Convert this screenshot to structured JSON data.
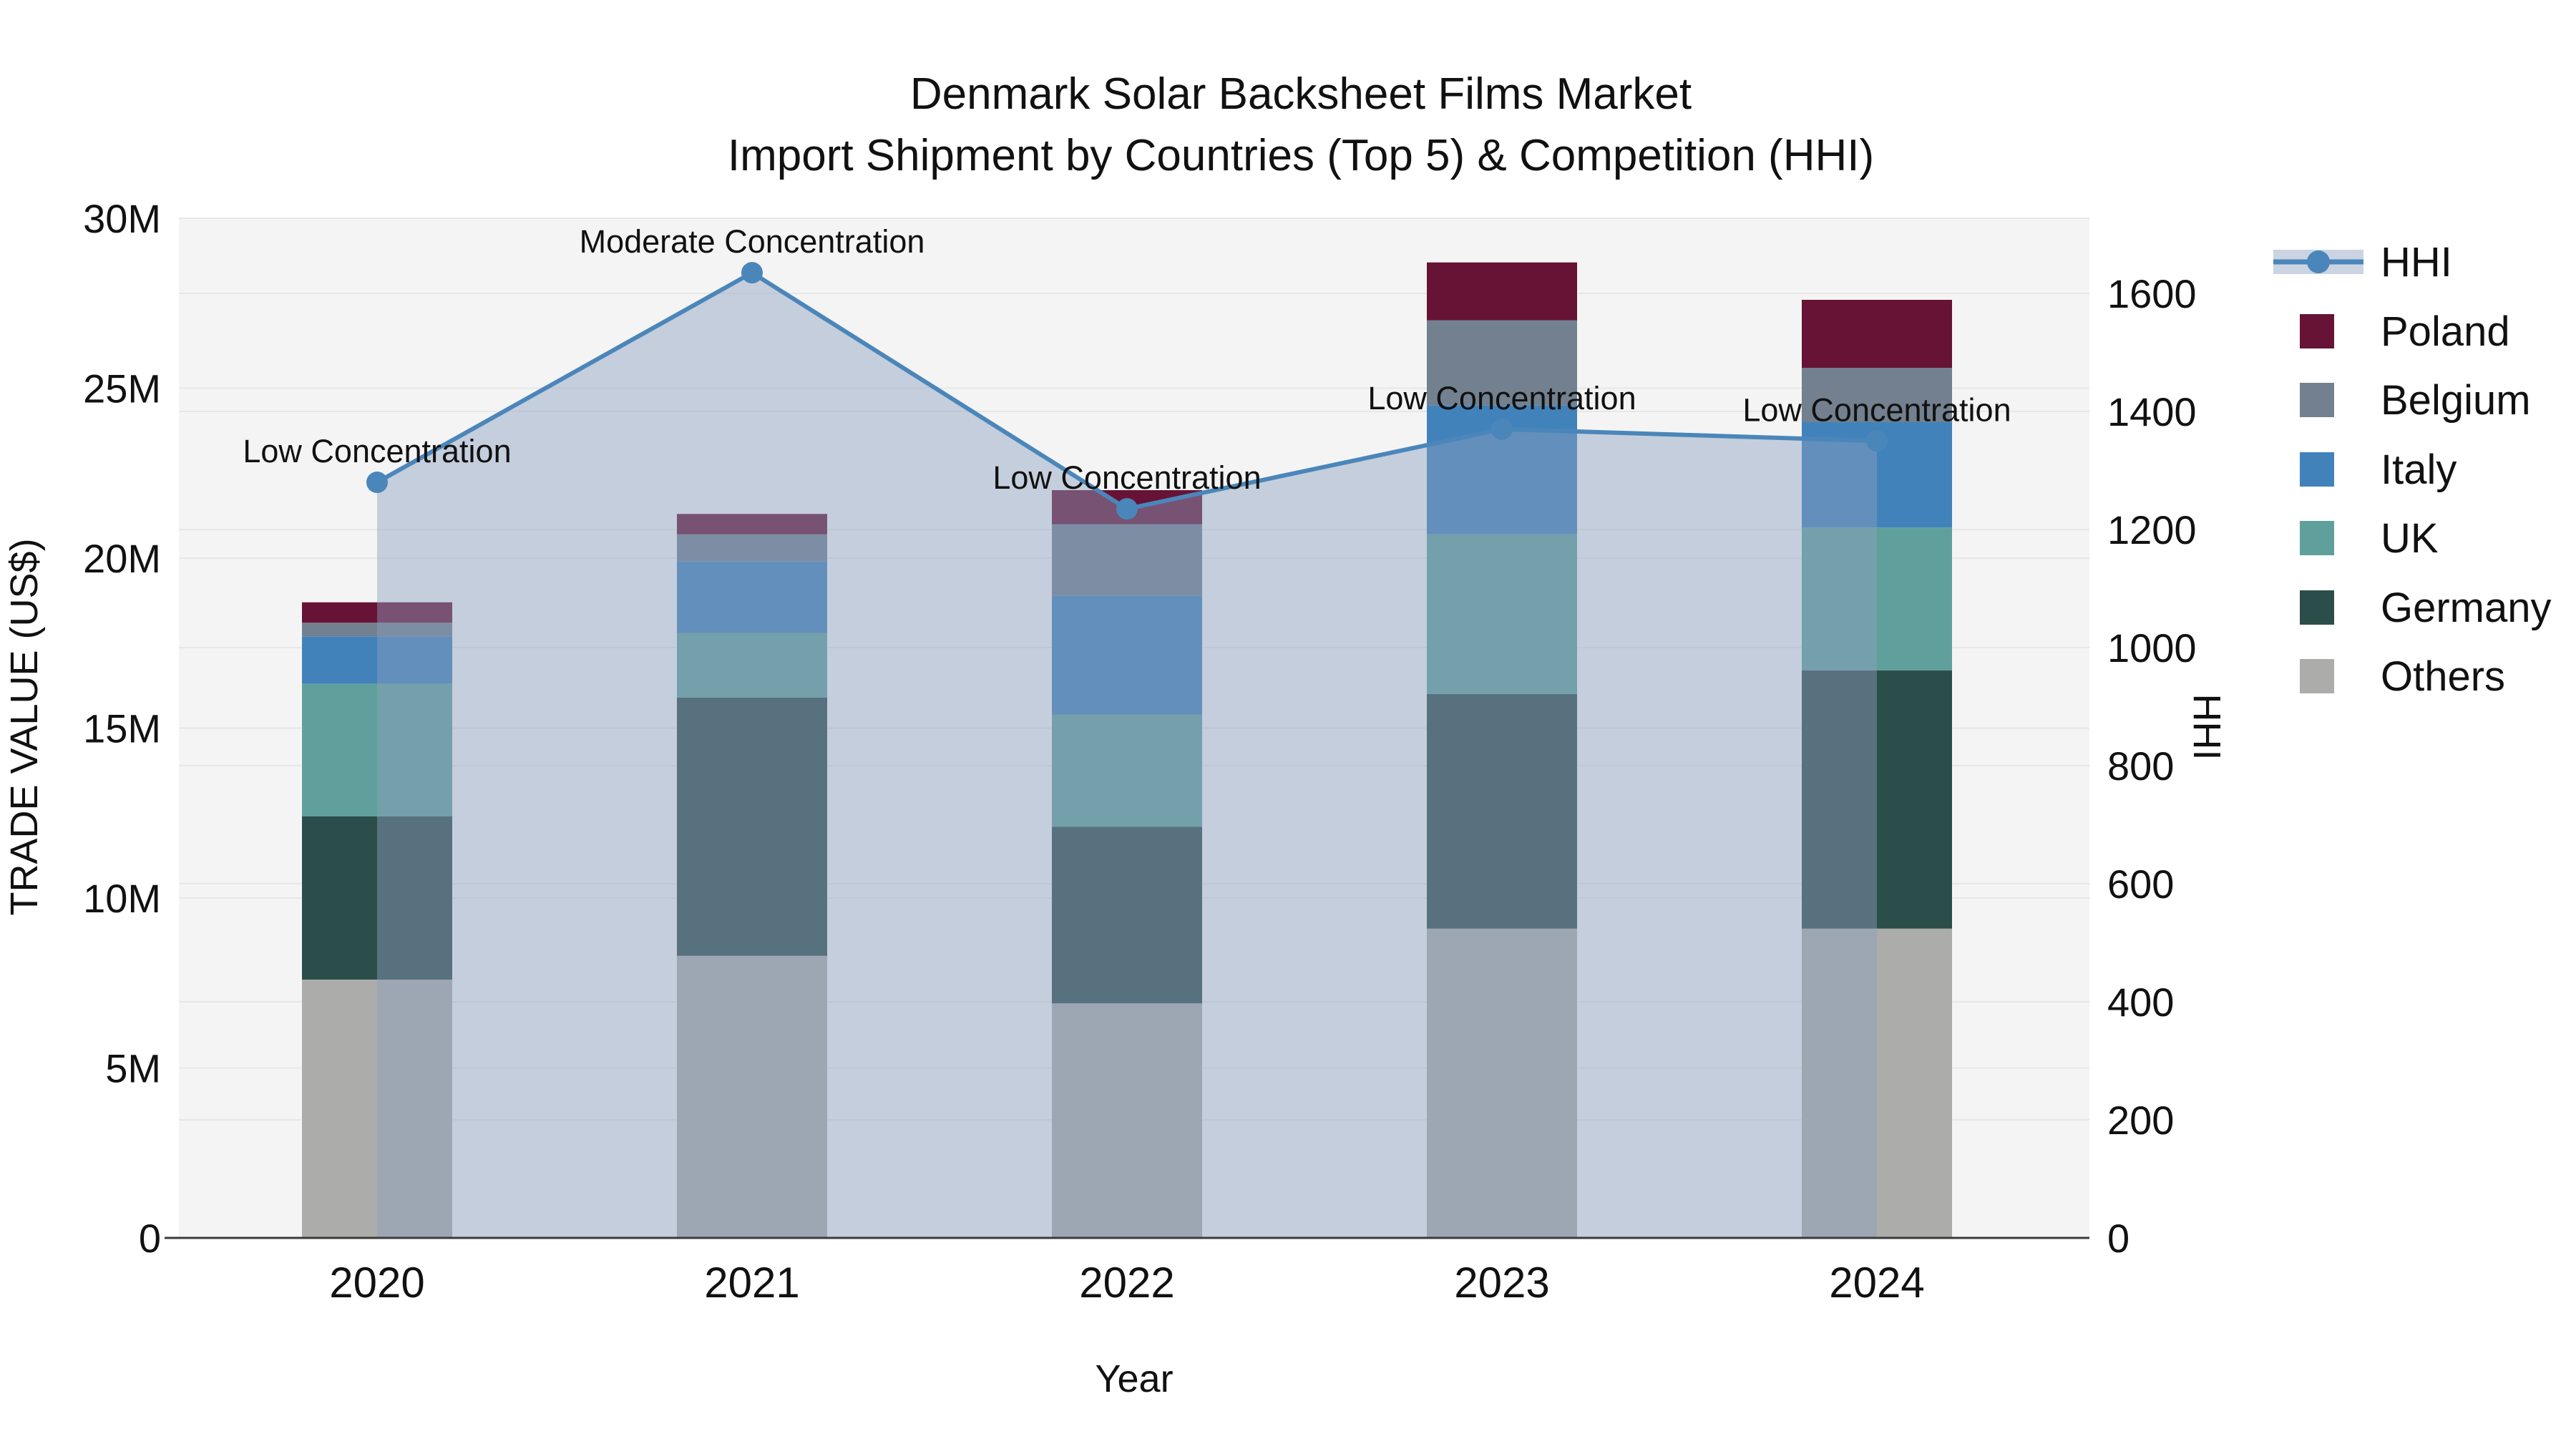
{
  "title": {
    "line1": "Denmark Solar Backsheet Films Market",
    "line2": "Import Shipment by Countries (Top 5) & Competition (HHI)"
  },
  "axes": {
    "left": {
      "title": "TRADE VALUE (US$)",
      "tick_labels": [
        "0",
        "5M",
        "10M",
        "15M",
        "20M",
        "25M",
        "30M"
      ],
      "tick_values": [
        0,
        5,
        10,
        15,
        20,
        25,
        30
      ],
      "range": [
        0,
        30
      ]
    },
    "right": {
      "title": "HHI",
      "tick_labels": [
        "0",
        "200",
        "400",
        "600",
        "800",
        "1000",
        "1200",
        "1400",
        "1600"
      ],
      "tick_values": [
        0,
        200,
        400,
        600,
        800,
        1000,
        1200,
        1400,
        1600
      ],
      "range": [
        0,
        1727
      ]
    },
    "x": {
      "title": "Year",
      "categories": [
        "2020",
        "2021",
        "2022",
        "2023",
        "2024"
      ]
    }
  },
  "legend": {
    "items": [
      {
        "label": "HHI",
        "type": "line",
        "color": "#4a86ba"
      },
      {
        "label": "Poland",
        "type": "swatch",
        "color": "#661335"
      },
      {
        "label": "Belgium",
        "type": "swatch",
        "color": "#72808f"
      },
      {
        "label": "Italy",
        "type": "swatch",
        "color": "#4282ba"
      },
      {
        "label": "UK",
        "type": "swatch",
        "color": "#5fa09c"
      },
      {
        "label": "Germany",
        "type": "swatch",
        "color": "#2c4e4a"
      },
      {
        "label": "Others",
        "type": "swatch",
        "color": "#acacaa"
      }
    ]
  },
  "chart_data": {
    "type": "bar+line",
    "title": "Denmark Solar Backsheet Films Market — Import Shipment by Countries (Top 5) & Competition (HHI)",
    "categories": [
      "2020",
      "2021",
      "2022",
      "2023",
      "2024"
    ],
    "bar_value_unit": "million US$",
    "stack_order_bottom_to_top": [
      "Others",
      "Germany",
      "UK",
      "Italy",
      "Belgium",
      "Poland"
    ],
    "series": [
      {
        "name": "Others",
        "color": "#acacaa",
        "values": [
          7.6,
          8.3,
          6.9,
          9.1,
          9.1
        ]
      },
      {
        "name": "Germany",
        "color": "#2c4e4a",
        "values": [
          4.8,
          7.6,
          5.2,
          6.9,
          7.6
        ]
      },
      {
        "name": "UK",
        "color": "#5fa09c",
        "values": [
          3.9,
          1.9,
          3.3,
          4.7,
          4.2
        ]
      },
      {
        "name": "Italy",
        "color": "#4282ba",
        "values": [
          1.4,
          2.1,
          3.5,
          3.8,
          3.1
        ]
      },
      {
        "name": "Belgium",
        "color": "#72808f",
        "values": [
          0.4,
          0.8,
          2.1,
          2.5,
          1.6
        ]
      },
      {
        "name": "Poland",
        "color": "#661335",
        "values": [
          0.6,
          0.6,
          1.0,
          1.7,
          2.0
        ]
      }
    ],
    "bar_totals": [
      18.7,
      21.3,
      22.0,
      28.7,
      27.6
    ],
    "line_series": {
      "name": "HHI",
      "axis": "right",
      "color": "#4a86ba",
      "area_fill": "rgba(140,160,190,0.45)",
      "values": [
        1280,
        1635,
        1235,
        1370,
        1350
      ]
    },
    "annotations": [
      {
        "x": "2020",
        "text": "Low Concentration"
      },
      {
        "x": "2021",
        "text": "Moderate Concentration"
      },
      {
        "x": "2022",
        "text": "Low Concentration"
      },
      {
        "x": "2023",
        "text": "Low Concentration"
      },
      {
        "x": "2024",
        "text": "Low Concentration"
      }
    ],
    "ylabel_left": "TRADE VALUE (US$)",
    "ylabel_right": "HHI",
    "xlabel": "Year",
    "grid": true,
    "legend_position": "right"
  },
  "colors": {
    "plot_background": "#f4f4f4",
    "page_background": "#ffffff",
    "gridline": "#e7e7e7",
    "axis_line": "#3b3b3b",
    "hhi_line": "#4a86ba",
    "area_fill": "rgba(140,160,190,0.45)"
  }
}
